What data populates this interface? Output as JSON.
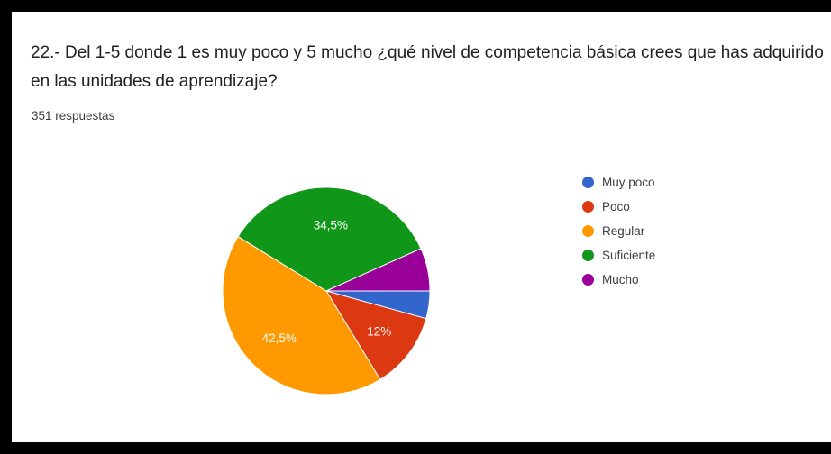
{
  "question": "22.- Del 1-5 donde 1 es muy poco y 5 mucho ¿qué nivel de competencia básica crees que has adquirido en las unidades de aprendizaje?",
  "responses_count": "351 respuestas",
  "chart_data": {
    "type": "pie",
    "title": "",
    "categories": [
      "Muy poco",
      "Poco",
      "Regular",
      "Suficiente",
      "Mucho"
    ],
    "values": [
      4.3,
      12.0,
      42.5,
      34.5,
      6.7
    ],
    "data_labels": [
      "",
      "12%",
      "42,5%",
      "34,5%",
      ""
    ],
    "colors": [
      "#3366cc",
      "#dc3912",
      "#ff9900",
      "#109618",
      "#990099"
    ],
    "legend_position": "right",
    "start_angle_deg": 0,
    "direction": "clockwise"
  }
}
